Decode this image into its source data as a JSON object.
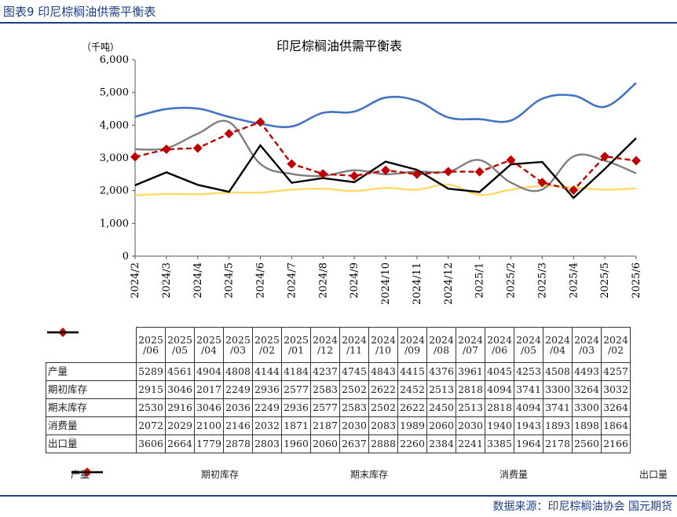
{
  "header": {
    "figure_label": "图表9  印尼棕榈油供需平衡表"
  },
  "footer": {
    "source": "数据来源：印尼棕榈油协会  国元期货"
  },
  "chart_data": {
    "type": "line",
    "title": "印尼棕榈油供需平衡表",
    "ylabel": "（千吨）",
    "ylim": [
      0,
      6000
    ],
    "yticks": [
      "0",
      "1,000",
      "2,000",
      "3,000",
      "4,000",
      "5,000",
      "6,000"
    ],
    "categories": [
      "2024/2",
      "2024/3",
      "2024/4",
      "2024/5",
      "2024/6",
      "2024/7",
      "2024/8",
      "2024/9",
      "2024/10",
      "2024/11",
      "2024/12",
      "2025/1",
      "2025/2",
      "2025/3",
      "2025/4",
      "2025/5",
      "2025/6"
    ],
    "series": [
      {
        "name": "产量",
        "color": "#4472c4",
        "dash": "solid",
        "marker": "none",
        "values": [
          4257,
          4493,
          4508,
          4253,
          4045,
          3961,
          4376,
          4415,
          4843,
          4745,
          4237,
          4184,
          4144,
          4808,
          4904,
          4561,
          5289
        ]
      },
      {
        "name": "期初库存",
        "color": "#c00000",
        "dash": "dashed",
        "marker": "diamond",
        "values": [
          3032,
          3264,
          3300,
          3741,
          4094,
          2818,
          2513,
          2452,
          2622,
          2502,
          2583,
          2577,
          2936,
          2249,
          2017,
          3046,
          2915
        ]
      },
      {
        "name": "期末库存",
        "color": "#7f7f7f",
        "dash": "solid",
        "marker": "none",
        "values": [
          3264,
          3300,
          3741,
          4094,
          2818,
          2513,
          2450,
          2622,
          2502,
          2583,
          2577,
          2936,
          2249,
          2036,
          3046,
          2916,
          2530
        ]
      },
      {
        "name": "消费量",
        "color": "#ffd966",
        "dash": "solid",
        "marker": "none",
        "values": [
          1864,
          1898,
          1893,
          1943,
          1940,
          2030,
          2060,
          1989,
          2083,
          2030,
          2187,
          1871,
          2032,
          2146,
          2100,
          2029,
          2072
        ]
      },
      {
        "name": "出口量",
        "color": "#000000",
        "dash": "solid",
        "marker": "none",
        "values": [
          2166,
          2560,
          2178,
          1964,
          3385,
          2241,
          2384,
          2260,
          2888,
          2637,
          2060,
          1960,
          2803,
          2878,
          1779,
          2664,
          3606
        ]
      }
    ],
    "legend_position": "bottom"
  }
}
